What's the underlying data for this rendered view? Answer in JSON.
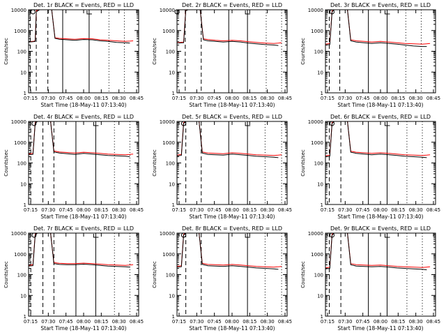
{
  "colors": {
    "events": "#000000",
    "lld": "#ff0000",
    "axes": "#000000"
  },
  "chart_data": [
    {
      "type": "line",
      "title": "Det. 1r BLACK = Events, RED = LLD",
      "xlabel": "Start Time (18-May-11 07:13:40)",
      "ylabel": "Counts/sec",
      "xlim": [
        0,
        100
      ],
      "ylim": [
        1,
        10000
      ],
      "yscale": "log",
      "xticks": [
        "07:15",
        "07:30",
        "07:45",
        "08:00",
        "08:15",
        "08:30",
        "08:45"
      ],
      "yticks": [
        "1",
        "10",
        "100",
        "1000",
        "10000"
      ],
      "x": [
        0,
        4,
        6,
        7,
        10,
        15,
        18,
        21,
        24,
        28,
        35,
        42,
        50,
        58,
        65,
        72,
        80,
        88,
        92,
        95
      ],
      "series": [
        {
          "name": "BLACK = Events",
          "values": [
            280,
            290,
            300,
            8000,
            10000,
            10000,
            10000,
            10000,
            420,
            380,
            360,
            340,
            370,
            360,
            320,
            300,
            270,
            260,
            250,
            null
          ]
        },
        {
          "name": "RED = LLD",
          "values": [
            290,
            300,
            320,
            9000,
            10000,
            10000,
            10000,
            10000,
            450,
            420,
            400,
            380,
            410,
            400,
            360,
            340,
            320,
            300,
            310,
            320
          ]
        }
      ],
      "vlines_dashed": [
        1.6,
        7,
        17.5
      ],
      "vlines_solid": [
        31,
        55
      ],
      "vlines_dotted": [
        73,
        87
      ],
      "marker_circle_x": 4
    },
    {
      "type": "line",
      "title": "Det. 2r BLACK = Events, RED = LLD",
      "xlabel": "Start Time (18-May-11 07:13:40)",
      "ylabel": "Counts/sec",
      "xlim": [
        0,
        100
      ],
      "ylim": [
        1,
        10000
      ],
      "yscale": "log",
      "xticks": [
        "07:15",
        "07:30",
        "07:45",
        "08:00",
        "08:15",
        "08:30",
        "08:45"
      ],
      "yticks": [
        "1",
        "10",
        "100",
        "1000",
        "10000"
      ],
      "x": [
        0,
        6,
        8,
        10,
        15,
        18,
        21,
        24,
        28,
        35,
        42,
        50,
        58,
        65,
        72,
        80,
        88,
        92,
        95
      ],
      "series": [
        {
          "name": "BLACK = Events",
          "values": [
            250,
            260,
            9000,
            10000,
            10000,
            10000,
            10000,
            360,
            320,
            300,
            280,
            300,
            280,
            250,
            230,
            210,
            200,
            190,
            null
          ]
        },
        {
          "name": "RED = LLD",
          "values": [
            260,
            280,
            10000,
            10000,
            10000,
            10000,
            10000,
            400,
            370,
            340,
            320,
            340,
            320,
            290,
            270,
            250,
            240,
            250,
            260
          ]
        }
      ],
      "vlines_dashed": [
        7.5,
        22
      ],
      "vlines_solid": [
        47,
        64
      ],
      "vlines_dotted": [
        81,
        95
      ],
      "marker_circle_x": 0
    },
    {
      "type": "line",
      "title": "Det. 3r BLACK = Events, RED = LLD",
      "xlabel": "Start Time (18-May-11 07:13:40)",
      "ylabel": "Counts/sec",
      "xlim": [
        0,
        100
      ],
      "ylim": [
        1,
        10000
      ],
      "yscale": "log",
      "xticks": [
        "07:15",
        "07:30",
        "07:45",
        "08:00",
        "08:15",
        "08:30",
        "08:45"
      ],
      "yticks": [
        "1",
        "10",
        "100",
        "1000",
        "10000"
      ],
      "x": [
        0,
        4,
        6,
        8,
        12,
        16,
        20,
        23,
        28,
        35,
        42,
        50,
        58,
        65,
        72,
        80,
        88,
        92,
        95
      ],
      "series": [
        {
          "name": "BLACK = Events",
          "values": [
            200,
            210,
            8000,
            10000,
            10000,
            10000,
            10000,
            320,
            280,
            260,
            240,
            260,
            240,
            220,
            200,
            180,
            170,
            170,
            null
          ]
        },
        {
          "name": "RED = LLD",
          "values": [
            220,
            240,
            9000,
            10000,
            10000,
            10000,
            10000,
            360,
            320,
            300,
            280,
            300,
            280,
            260,
            240,
            230,
            220,
            230,
            240
          ]
        }
      ],
      "vlines_dashed": [
        3.5,
        13
      ],
      "vlines_solid": [
        39,
        56
      ],
      "vlines_dotted": [
        73,
        87
      ],
      "marker_circle_x": 6
    },
    {
      "type": "line",
      "title": "Det. 4r BLACK = Events, RED = LLD",
      "xlabel": "Start Time (18-May-11 07:13:40)",
      "ylabel": "Counts/sec",
      "xlim": [
        0,
        100
      ],
      "ylim": [
        1,
        10000
      ],
      "yscale": "log",
      "xticks": [
        "07:15",
        "07:30",
        "07:45",
        "08:00",
        "08:15",
        "08:30",
        "08:45"
      ],
      "yticks": [
        "1",
        "10",
        "100",
        "1000",
        "10000"
      ],
      "x": [
        0,
        4,
        6,
        8,
        12,
        16,
        20,
        23,
        28,
        35,
        42,
        50,
        58,
        65,
        72,
        80,
        88,
        92,
        95
      ],
      "series": [
        {
          "name": "BLACK = Events",
          "values": [
            250,
            260,
            8000,
            10000,
            10000,
            10000,
            10000,
            340,
            300,
            280,
            260,
            290,
            270,
            250,
            230,
            220,
            210,
            200,
            null
          ]
        },
        {
          "name": "RED = LLD",
          "values": [
            270,
            290,
            9000,
            10000,
            10000,
            10000,
            10000,
            380,
            340,
            320,
            300,
            330,
            310,
            290,
            270,
            260,
            250,
            260,
            270
          ]
        }
      ],
      "vlines_dashed": [
        2,
        13,
        23
      ],
      "vlines_solid": [
        43,
        61
      ],
      "vlines_dotted": [
        78,
        92
      ],
      "marker_circle_x": 5
    },
    {
      "type": "line",
      "title": "Det. 5r BLACK = Events, RED = LLD",
      "xlabel": "Start Time (18-May-11 07:13:40)",
      "ylabel": "Counts/sec",
      "xlim": [
        0,
        100
      ],
      "ylim": [
        1,
        10000
      ],
      "yscale": "log",
      "xticks": [
        "07:15",
        "07:30",
        "07:45",
        "08:00",
        "08:15",
        "08:30",
        "08:45"
      ],
      "yticks": [
        "1",
        "10",
        "100",
        "1000",
        "10000"
      ],
      "x": [
        0,
        4,
        6,
        8,
        12,
        16,
        20,
        23,
        28,
        35,
        42,
        50,
        58,
        65,
        72,
        80,
        88,
        92,
        95
      ],
      "series": [
        {
          "name": "BLACK = Events",
          "values": [
            220,
            230,
            8000,
            10000,
            10000,
            10000,
            10000,
            300,
            260,
            250,
            240,
            270,
            250,
            230,
            210,
            200,
            190,
            180,
            null
          ]
        },
        {
          "name": "RED = LLD",
          "values": [
            240,
            260,
            9000,
            10000,
            10000,
            10000,
            10000,
            340,
            300,
            290,
            280,
            310,
            290,
            270,
            250,
            240,
            230,
            240,
            250
          ]
        }
      ],
      "vlines_dashed": [
        8,
        22
      ],
      "vlines_solid": [
        47,
        64
      ],
      "vlines_dotted": [
        80,
        95
      ],
      "marker_circle_x": 6
    },
    {
      "type": "line",
      "title": "Det. 6r BLACK = Events, RED = LLD",
      "xlabel": "Start Time (18-May-11 07:13:40)",
      "ylabel": "Counts/sec",
      "xlim": [
        0,
        100
      ],
      "ylim": [
        1,
        10000
      ],
      "yscale": "log",
      "xticks": [
        "07:15",
        "07:30",
        "07:45",
        "08:00",
        "08:15",
        "08:30",
        "08:45"
      ],
      "yticks": [
        "1",
        "10",
        "100",
        "1000",
        "10000"
      ],
      "x": [
        0,
        4,
        6,
        8,
        12,
        16,
        20,
        23,
        28,
        35,
        42,
        50,
        58,
        65,
        72,
        80,
        88,
        92,
        95
      ],
      "series": [
        {
          "name": "BLACK = Events",
          "values": [
            200,
            210,
            8000,
            10000,
            10000,
            10000,
            10000,
            330,
            290,
            270,
            250,
            270,
            250,
            230,
            210,
            200,
            190,
            180,
            null
          ]
        },
        {
          "name": "RED = LLD",
          "values": [
            220,
            240,
            9000,
            10000,
            10000,
            10000,
            10000,
            370,
            330,
            310,
            290,
            310,
            290,
            270,
            250,
            240,
            230,
            240,
            250
          ]
        }
      ],
      "vlines_dashed": [
        3.5,
        14
      ],
      "vlines_solid": [
        39,
        56
      ],
      "vlines_dotted": [
        74,
        88
      ],
      "marker_circle_x": 6
    },
    {
      "type": "line",
      "title": "Det. 7r BLACK = Events, RED = LLD",
      "xlabel": "Start Time (18-May-11 07:13:40)",
      "ylabel": "Counts/sec",
      "xlim": [
        0,
        100
      ],
      "ylim": [
        1,
        10000
      ],
      "yscale": "log",
      "xticks": [
        "07:15",
        "07:30",
        "07:45",
        "08:00",
        "08:15",
        "08:30",
        "08:45"
      ],
      "yticks": [
        "1",
        "10",
        "100",
        "1000",
        "10000"
      ],
      "x": [
        0,
        4,
        6,
        8,
        12,
        16,
        20,
        23,
        28,
        35,
        42,
        50,
        58,
        65,
        72,
        80,
        88,
        92,
        95
      ],
      "series": [
        {
          "name": "BLACK = Events",
          "values": [
            260,
            270,
            8000,
            10000,
            10000,
            10000,
            10000,
            340,
            310,
            300,
            300,
            320,
            300,
            280,
            260,
            250,
            240,
            230,
            null
          ]
        },
        {
          "name": "RED = LLD",
          "values": [
            280,
            300,
            9000,
            10000,
            10000,
            10000,
            10000,
            380,
            350,
            340,
            340,
            360,
            340,
            320,
            300,
            290,
            280,
            290,
            300
          ]
        }
      ],
      "vlines_dashed": [
        2,
        13,
        23
      ],
      "vlines_solid": [
        43,
        61
      ],
      "vlines_dotted": [
        78,
        92
      ],
      "marker_circle_x": 5
    },
    {
      "type": "line",
      "title": "Det. 8r BLACK = Events, RED = LLD",
      "xlabel": "Start Time (18-May-11 07:13:40)",
      "ylabel": "Counts/sec",
      "xlim": [
        0,
        100
      ],
      "ylim": [
        1,
        10000
      ],
      "yscale": "log",
      "xticks": [
        "07:15",
        "07:30",
        "07:45",
        "08:00",
        "08:15",
        "08:30",
        "08:45"
      ],
      "yticks": [
        "1",
        "10",
        "100",
        "1000",
        "10000"
      ],
      "x": [
        0,
        4,
        6,
        8,
        12,
        16,
        20,
        23,
        28,
        35,
        42,
        50,
        58,
        65,
        72,
        80,
        88,
        92,
        95
      ],
      "series": [
        {
          "name": "BLACK = Events",
          "values": [
            230,
            240,
            8000,
            10000,
            10000,
            10000,
            10000,
            310,
            270,
            260,
            250,
            270,
            250,
            230,
            210,
            200,
            190,
            180,
            null
          ]
        },
        {
          "name": "RED = LLD",
          "values": [
            250,
            270,
            9000,
            10000,
            10000,
            10000,
            10000,
            350,
            310,
            300,
            290,
            310,
            290,
            270,
            250,
            240,
            230,
            240,
            250
          ]
        }
      ],
      "vlines_dashed": [
        8,
        22
      ],
      "vlines_solid": [
        47,
        64
      ],
      "vlines_dotted": [
        80,
        95
      ],
      "marker_circle_x": 6
    },
    {
      "type": "line",
      "title": "Det. 9r BLACK = Events, RED = LLD",
      "xlabel": "Start Time (18-May-11 07:13:40)",
      "ylabel": "Counts/sec",
      "xlim": [
        0,
        100
      ],
      "ylim": [
        1,
        10000
      ],
      "yscale": "log",
      "xticks": [
        "07:15",
        "07:30",
        "07:45",
        "08:00",
        "08:15",
        "08:30",
        "08:45"
      ],
      "yticks": [
        "1",
        "10",
        "100",
        "1000",
        "10000"
      ],
      "x": [
        0,
        4,
        6,
        8,
        12,
        16,
        20,
        23,
        28,
        35,
        42,
        50,
        58,
        65,
        72,
        80,
        88,
        92,
        95
      ],
      "series": [
        {
          "name": "BLACK = Events",
          "values": [
            190,
            200,
            8000,
            10000,
            10000,
            10000,
            10000,
            300,
            260,
            250,
            240,
            250,
            230,
            210,
            200,
            190,
            180,
            170,
            null
          ]
        },
        {
          "name": "RED = LLD",
          "values": [
            210,
            230,
            9000,
            10000,
            10000,
            10000,
            10000,
            340,
            300,
            290,
            280,
            290,
            270,
            250,
            240,
            230,
            220,
            230,
            240
          ]
        }
      ],
      "vlines_dashed": [
        3.5,
        14
      ],
      "vlines_solid": [
        39,
        56
      ],
      "vlines_dotted": [
        74,
        88
      ],
      "marker_circle_x": 6
    }
  ]
}
